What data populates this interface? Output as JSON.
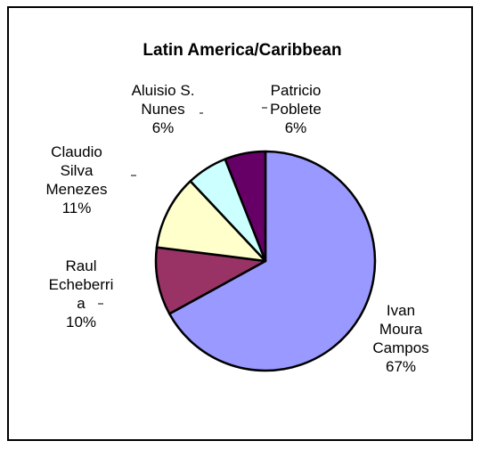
{
  "chart_data": {
    "type": "pie",
    "title": "Latin America/Caribbean",
    "slices": [
      {
        "label_lines": [
          "Ivan",
          "Moura",
          "Campos"
        ],
        "percent_label": "67%",
        "value": 67,
        "color": "#9999ff"
      },
      {
        "label_lines": [
          "Raul",
          "Echeberri",
          "a"
        ],
        "percent_label": "10%",
        "value": 10,
        "color": "#993366"
      },
      {
        "label_lines": [
          "Claudio",
          "Silva",
          "Menezes"
        ],
        "percent_label": "11%",
        "value": 11,
        "color": "#ffffcc"
      },
      {
        "label_lines": [
          "Aluisio S.",
          "Nunes"
        ],
        "percent_label": "6%",
        "value": 6,
        "color": "#ccffff"
      },
      {
        "label_lines": [
          "Patricio",
          "Poblete"
        ],
        "percent_label": "6%",
        "value": 6,
        "color": "#660066"
      }
    ],
    "legend": "none"
  }
}
